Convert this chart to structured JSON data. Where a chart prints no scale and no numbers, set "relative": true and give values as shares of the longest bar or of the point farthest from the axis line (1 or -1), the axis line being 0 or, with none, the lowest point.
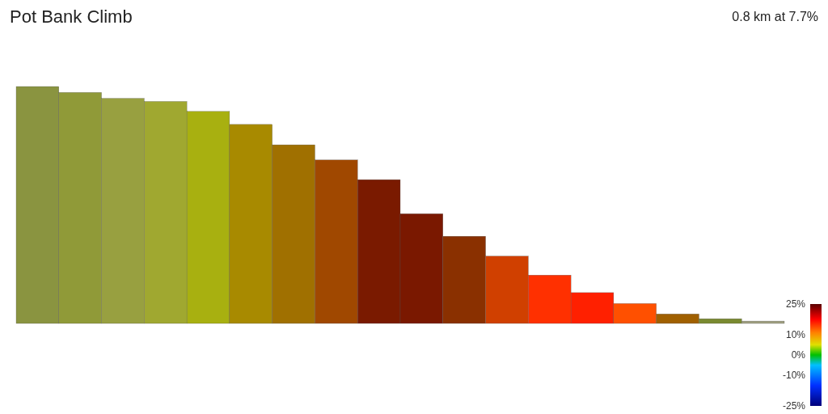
{
  "chart_data": {
    "type": "bar",
    "title": "Pot Bank Climb",
    "annotations": [
      "0.8 km at 7.7%"
    ],
    "relative": true,
    "categories": [
      null,
      null,
      null,
      null,
      null,
      null,
      null,
      null,
      null,
      null,
      null,
      null,
      null,
      null,
      null,
      null,
      null,
      null
    ],
    "values": [
      1.0,
      0.975,
      0.95,
      0.937,
      0.895,
      0.84,
      0.754,
      0.69,
      0.607,
      0.463,
      0.368,
      0.284,
      0.204,
      0.13,
      0.084,
      0.04,
      0.02,
      0.01
    ],
    "colors": [
      "#8a9440",
      "#909a38",
      "#98a040",
      "#a0a830",
      "#a8b010",
      "#a88a00",
      "#a07000",
      "#a04800",
      "#7a1a00",
      "#7a1800",
      "#8a3000",
      "#d04000",
      "#ff3000",
      "#ff2000",
      "#ff5000",
      "#a06000",
      "#7a8a30",
      "#a0a080"
    ],
    "clim": [
      -25,
      25
    ],
    "cticks": [
      {
        "value": 25,
        "label": "25%"
      },
      {
        "value": 10,
        "label": "10%"
      },
      {
        "value": 0,
        "label": "0%"
      },
      {
        "value": -10,
        "label": "-10%"
      },
      {
        "value": -25,
        "label": "-25%"
      }
    ]
  }
}
